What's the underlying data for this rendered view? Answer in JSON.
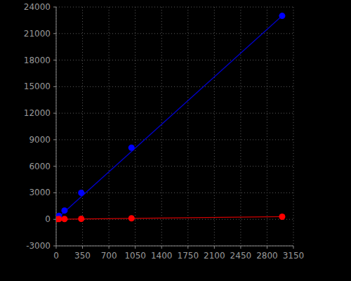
{
  "chart_data": {
    "type": "scatter",
    "series": [
      {
        "type": "line",
        "color": "#0000c8",
        "line_style": "solid",
        "x": [
          0,
          3000
        ],
        "values": [
          0,
          23000
        ]
      },
      {
        "type": "line",
        "color": "#d00000",
        "line_style": "solid",
        "x": [
          0,
          3000
        ],
        "values": [
          0,
          300
        ]
      },
      {
        "type": "scatter",
        "color": "#0000ff",
        "marker": "circle",
        "x": [
          0,
          37,
          111,
          333,
          1000,
          3000
        ],
        "values": [
          100,
          400,
          1000,
          3000,
          8100,
          23000
        ]
      },
      {
        "type": "scatter",
        "color": "#ff0000",
        "marker": "circle",
        "x": [
          0,
          37,
          111,
          333,
          1000,
          3000
        ],
        "values": [
          20,
          30,
          40,
          60,
          120,
          300
        ]
      }
    ],
    "xlim": [
      0,
      3150
    ],
    "xticks": [
      0,
      350,
      700,
      1050,
      1400,
      1750,
      2100,
      2450,
      2800,
      3150
    ],
    "ylim": [
      -3000,
      24000
    ],
    "yticks": [
      -3000,
      0,
      3000,
      6000,
      9000,
      12000,
      15000,
      18000,
      21000,
      24000
    ],
    "grid": true
  }
}
